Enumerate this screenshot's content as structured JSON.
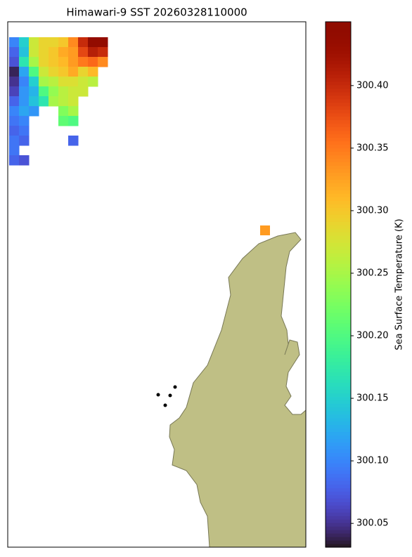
{
  "chart_data": {
    "type": "heatmap",
    "title": "Himawari-9 SST 20260328110000",
    "colorbar_label": "Sea Surface Temperature (K)",
    "colormap": "turbo",
    "clim": [
      300.031,
      300.451
    ],
    "cticks": [
      300.05,
      {
        "value": 300.1,
        "label": "300.10"
      },
      300.15,
      {
        "value": 300.2,
        "label": "300.20"
      },
      300.25,
      {
        "value": 300.3,
        "label": "300.30"
      },
      300.35,
      {
        "value": 300.4,
        "label": "300.40"
      }
    ],
    "values": [
      [
        300.1,
        300.15,
        300.27,
        300.29,
        300.29,
        300.3,
        300.34,
        300.4,
        300.44,
        300.44
      ],
      [
        300.08,
        300.14,
        300.27,
        300.29,
        300.3,
        300.32,
        300.33,
        300.38,
        300.41,
        300.4
      ],
      [
        300.07,
        300.17,
        300.25,
        300.29,
        300.3,
        300.31,
        300.33,
        300.35,
        300.36,
        300.34
      ],
      [
        300.04,
        300.12,
        300.2,
        300.27,
        300.29,
        300.3,
        300.32,
        300.29,
        300.31,
        null
      ],
      [
        300.05,
        300.1,
        300.15,
        300.25,
        300.26,
        300.28,
        300.28,
        300.27,
        300.26,
        null
      ],
      [
        300.06,
        300.11,
        300.13,
        300.2,
        300.24,
        300.26,
        300.27,
        300.27,
        null,
        null
      ],
      [
        300.08,
        300.11,
        300.14,
        300.17,
        300.25,
        300.26,
        300.27,
        null,
        null,
        null
      ],
      [
        300.1,
        300.12,
        300.11,
        null,
        null,
        300.23,
        300.25,
        null,
        null,
        null
      ],
      [
        300.09,
        300.1,
        null,
        null,
        null,
        300.21,
        300.2,
        null,
        null,
        null
      ],
      [
        300.08,
        300.09,
        null,
        null,
        null,
        null,
        null,
        null,
        null,
        null
      ],
      [
        300.09,
        300.08,
        null,
        null,
        null,
        null,
        300.08,
        null,
        null,
        null
      ],
      [
        300.09,
        null,
        null,
        null,
        null,
        null,
        null,
        null,
        null,
        null
      ],
      [
        300.08,
        300.07,
        null,
        null,
        null,
        null,
        null,
        null,
        null,
        null
      ]
    ],
    "isolated_values": [
      300.33
    ]
  }
}
